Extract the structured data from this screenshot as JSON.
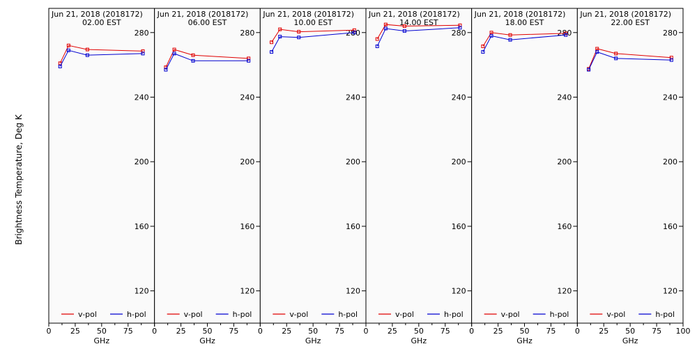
{
  "figure": {
    "ylabel": "Brightness Temperature, Deg K"
  },
  "colors": {
    "v_pol": "#e00000",
    "h_pol": "#0000d0",
    "frame": "#000000",
    "background": "#fafafa"
  },
  "chart_data": [
    {
      "type": "line",
      "title": "Jun 21, 2018 (2018172)",
      "subtitle": "02.00 EST",
      "xlabel": "GHz",
      "xlim": [
        0,
        100
      ],
      "ylim": [
        100,
        295
      ],
      "xticks": [
        0,
        25,
        50,
        75,
        100
      ],
      "yticks": [
        120,
        160,
        200,
        240,
        280
      ],
      "x": [
        10.7,
        18.7,
        36.5,
        89
      ],
      "series": [
        {
          "name": "v-pol",
          "color": "#e00000",
          "values": [
            261,
            272,
            269.5,
            268.5
          ]
        },
        {
          "name": "h-pol",
          "color": "#0000d0",
          "values": [
            259,
            269,
            266,
            267
          ]
        }
      ],
      "legend": "bottom"
    },
    {
      "type": "line",
      "title": "Jun 21, 2018 (2018172)",
      "subtitle": "06.00 EST",
      "xlabel": "GHz",
      "xlim": [
        0,
        100
      ],
      "ylim": [
        100,
        295
      ],
      "xticks": [
        0,
        25,
        50,
        75,
        100
      ],
      "yticks": [
        120,
        160,
        200,
        240,
        280
      ],
      "x": [
        10.7,
        18.7,
        36.5,
        89
      ],
      "series": [
        {
          "name": "v-pol",
          "color": "#e00000",
          "values": [
            258.5,
            269.5,
            266,
            264
          ]
        },
        {
          "name": "h-pol",
          "color": "#0000d0",
          "values": [
            257,
            267,
            262.5,
            262.5
          ]
        }
      ],
      "legend": "bottom"
    },
    {
      "type": "line",
      "title": "Jun 21, 2018 (2018172)",
      "subtitle": "10.00 EST",
      "xlabel": "GHz",
      "xlim": [
        0,
        100
      ],
      "ylim": [
        100,
        295
      ],
      "xticks": [
        0,
        25,
        50,
        75,
        100
      ],
      "yticks": [
        120,
        160,
        200,
        240,
        280
      ],
      "x": [
        10.7,
        18.7,
        36.5,
        89
      ],
      "series": [
        {
          "name": "v-pol",
          "color": "#e00000",
          "values": [
            274,
            282,
            280.5,
            281.5
          ]
        },
        {
          "name": "h-pol",
          "color": "#0000d0",
          "values": [
            268,
            277.5,
            277,
            280
          ]
        }
      ],
      "legend": "bottom"
    },
    {
      "type": "line",
      "title": "Jun 21, 2018 (2018172)",
      "subtitle": "14.00 EST",
      "xlabel": "GHz",
      "xlim": [
        0,
        100
      ],
      "ylim": [
        100,
        295
      ],
      "xticks": [
        0,
        25,
        50,
        75,
        100
      ],
      "yticks": [
        120,
        160,
        200,
        240,
        280
      ],
      "x": [
        10.7,
        18.7,
        36.5,
        89
      ],
      "series": [
        {
          "name": "v-pol",
          "color": "#e00000",
          "values": [
            276,
            285,
            284,
            284.5
          ]
        },
        {
          "name": "h-pol",
          "color": "#0000d0",
          "values": [
            271.5,
            282.5,
            281,
            283
          ]
        }
      ],
      "legend": "bottom"
    },
    {
      "type": "line",
      "title": "Jun 21, 2018 (2018172)",
      "subtitle": "18.00 EST",
      "xlabel": "GHz",
      "xlim": [
        0,
        100
      ],
      "ylim": [
        100,
        295
      ],
      "xticks": [
        0,
        25,
        50,
        75,
        100
      ],
      "yticks": [
        120,
        160,
        200,
        240,
        280
      ],
      "x": [
        10.7,
        18.7,
        36.5,
        89
      ],
      "series": [
        {
          "name": "v-pol",
          "color": "#e00000",
          "values": [
            271.5,
            280,
            278.5,
            279.5
          ]
        },
        {
          "name": "h-pol",
          "color": "#0000d0",
          "values": [
            268,
            278,
            275.5,
            278.5
          ]
        }
      ],
      "legend": "bottom"
    },
    {
      "type": "line",
      "title": "Jun 21, 2018 (2018172)",
      "subtitle": "22.00 EST",
      "xlabel": "GHz",
      "xlim": [
        0,
        100
      ],
      "ylim": [
        100,
        295
      ],
      "xticks": [
        0,
        25,
        50,
        75,
        100
      ],
      "yticks": [
        120,
        160,
        200,
        240,
        280
      ],
      "x": [
        10.7,
        18.7,
        36.5,
        89
      ],
      "series": [
        {
          "name": "v-pol",
          "color": "#e00000",
          "values": [
            257.5,
            270,
            267,
            264.5
          ]
        },
        {
          "name": "h-pol",
          "color": "#0000d0",
          "values": [
            257,
            268,
            264,
            263
          ]
        }
      ],
      "legend": "bottom"
    }
  ]
}
